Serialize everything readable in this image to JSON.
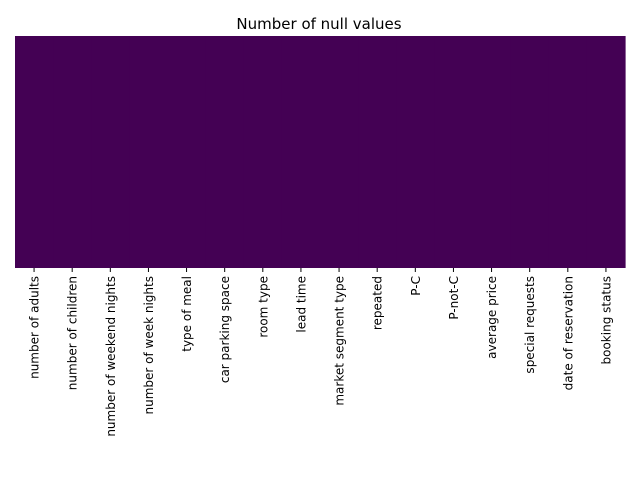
{
  "chart_data": {
    "type": "heatmap",
    "title": "Number of null values",
    "xlabel": "",
    "ylabel": "",
    "categories": [
      "number of adults",
      "number of children",
      "number of weekend nights",
      "number of week nights",
      "type of meal",
      "car parking space",
      "room type",
      "lead time",
      "market segment type",
      "repeated",
      "P-C",
      "P-not-C",
      "average price",
      "special requests",
      "date of reservation",
      "booking status"
    ],
    "values": [
      0,
      0,
      0,
      0,
      0,
      0,
      0,
      0,
      0,
      0,
      0,
      0,
      0,
      0,
      0,
      0
    ],
    "colorbar": false,
    "y_ticks": false,
    "grid": false,
    "fill_color": "#440154"
  }
}
